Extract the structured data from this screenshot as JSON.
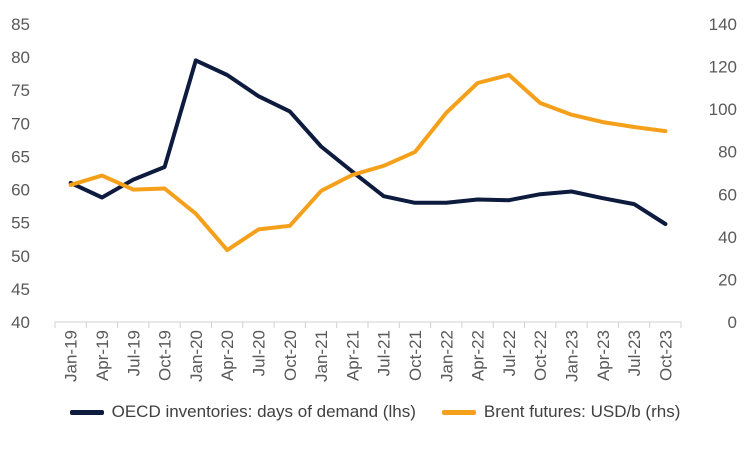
{
  "chart_data": {
    "type": "line",
    "categories": [
      "Jan-19",
      "Apr-19",
      "Jul-19",
      "Oct-19",
      "Jan-20",
      "Apr-20",
      "Jul-20",
      "Oct-20",
      "Jan-21",
      "Apr-21",
      "Jul-21",
      "Oct-21",
      "Jan-22",
      "Apr-22",
      "Jul-22",
      "Oct-22",
      "Jan-23",
      "Apr-23",
      "Jul-23",
      "Oct-23"
    ],
    "y_left": {
      "ylim": [
        40,
        85
      ],
      "ticks": [
        "40",
        "45",
        "50",
        "55",
        "60",
        "65",
        "70",
        "75",
        "80",
        "85"
      ]
    },
    "y_right": {
      "ylim": [
        0,
        140
      ],
      "ticks": [
        "0",
        "20",
        "40",
        "60",
        "80",
        "100",
        "120",
        "140"
      ]
    },
    "series": [
      {
        "name": "OECD inventories: days of demand (lhs)",
        "axis": "left",
        "color": "#0d1b3e",
        "values": [
          61.0,
          58.8,
          61.5,
          63.4,
          79.5,
          77.3,
          74.1,
          71.8,
          66.5,
          62.7,
          59.0,
          58.0,
          58.0,
          58.5,
          58.4,
          59.3,
          59.7,
          58.7,
          57.8,
          54.8
        ]
      },
      {
        "name": "Brent futures: USD/b (rhs)",
        "axis": "right",
        "color": "#f5a01a",
        "values": [
          64.4,
          68.8,
          62.2,
          62.7,
          50.9,
          33.8,
          43.5,
          45.2,
          61.6,
          69.1,
          73.4,
          79.8,
          98.3,
          112.3,
          116.1,
          102.9,
          97.4,
          93.9,
          91.6,
          89.7
        ]
      }
    ],
    "grid": false,
    "legend_position": "bottom"
  }
}
